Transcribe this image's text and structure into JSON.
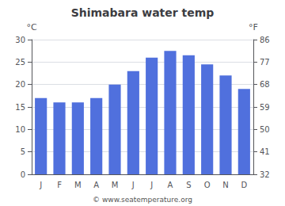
{
  "chart_data": {
    "type": "bar",
    "title": "Shimabara water temp",
    "categories": [
      "J",
      "F",
      "M",
      "A",
      "M",
      "J",
      "J",
      "A",
      "S",
      "O",
      "N",
      "D"
    ],
    "values": [
      17,
      16,
      16,
      17,
      20,
      23,
      26,
      27.5,
      26.5,
      24.5,
      22,
      19
    ],
    "ylabel": "°C",
    "ylim": [
      0,
      30
    ],
    "yticks": [
      0,
      5,
      10,
      15,
      20,
      25,
      30
    ],
    "y2label": "°F",
    "y2lim": [
      32,
      86
    ],
    "y2ticks": [
      32,
      41,
      50,
      59,
      68,
      77,
      86
    ],
    "grid": true,
    "annotations": [
      "© www.seatemperature.org"
    ]
  }
}
